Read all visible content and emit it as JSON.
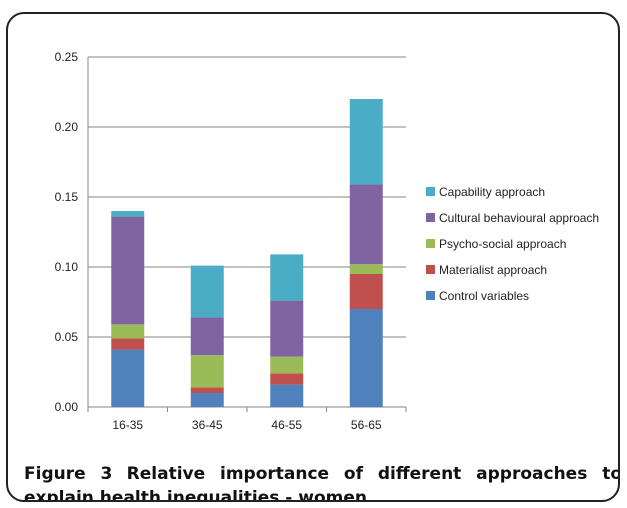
{
  "chart_data": {
    "type": "bar",
    "stacked": true,
    "categories": [
      "16-35",
      "36-45",
      "46-55",
      "56-65"
    ],
    "series": [
      {
        "name": "Control variables",
        "color": "#4F81BD",
        "values": [
          0.041,
          0.01,
          0.016,
          0.07
        ]
      },
      {
        "name": "Materialist approach",
        "color": "#C0504D",
        "values": [
          0.008,
          0.004,
          0.008,
          0.025
        ]
      },
      {
        "name": "Psycho-social approach",
        "color": "#9BBB59",
        "values": [
          0.01,
          0.023,
          0.012,
          0.007
        ]
      },
      {
        "name": "Cultural behavioural approach",
        "color": "#8064A2",
        "values": [
          0.077,
          0.027,
          0.04,
          0.057
        ]
      },
      {
        "name": "Capability approach",
        "color": "#4BACC6",
        "values": [
          0.004,
          0.037,
          0.033,
          0.061
        ]
      }
    ],
    "ylim": [
      0,
      0.25
    ],
    "yticks": [
      "0.00",
      "0.05",
      "0.10",
      "0.15",
      "0.20",
      "0.25"
    ],
    "grid": true,
    "legend": "right"
  },
  "caption": {
    "label": "Figure 3",
    "text": "Relative importance of different approaches to explain health inequalities - women",
    "period": "."
  }
}
